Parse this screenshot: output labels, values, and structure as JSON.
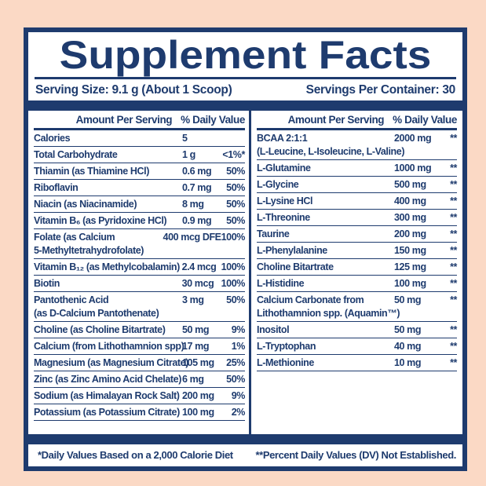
{
  "title": "Supplement Facts",
  "serving": {
    "size_label": "Serving Size: 9.1 g (About 1 Scoop)",
    "per_container_label": "Servings Per Container: 30"
  },
  "table": {
    "header": {
      "amount": "Amount Per Serving",
      "dv": "% Daily Value"
    },
    "left_rows": [
      {
        "name": "Calories",
        "amount": "5",
        "dv": ""
      },
      {
        "name": "Total Carbohydrate",
        "amount": "1 g",
        "dv": "<1%*"
      },
      {
        "name": "Thiamin (as Thiamine HCl)",
        "amount": "0.6 mg",
        "dv": "50%"
      },
      {
        "name": "Riboflavin",
        "amount": "0.7 mg",
        "dv": "50%"
      },
      {
        "name": "Niacin (as Niacinamide)",
        "amount": "8 mg",
        "dv": "50%"
      },
      {
        "name": "Vitamin B₆ (as Pyridoxine HCl)",
        "amount": "0.9 mg",
        "dv": "50%"
      },
      {
        "name": "Folate (as Calcium",
        "name2": "5-Methyltetrahydrofolate)",
        "amount": "400 mcg DFE",
        "dv": "100%"
      },
      {
        "name": "Vitamin B₁₂ (as Methylcobalamin)",
        "amount": "2.4 mcg",
        "dv": "100%"
      },
      {
        "name": "Biotin",
        "amount": "30 mcg",
        "dv": "100%"
      },
      {
        "name": "Pantothenic Acid",
        "name2": "(as D-Calcium Pantothenate)",
        "amount": "3 mg",
        "dv": "50%"
      },
      {
        "name": "Choline (as Choline Bitartrate)",
        "amount": "50 mg",
        "dv": "9%"
      },
      {
        "name": "Calcium (from Lithothamnion spp)",
        "amount": "17 mg",
        "dv": "1%"
      },
      {
        "name": "Magnesium (as Magnesium Citrate)",
        "amount": "105 mg",
        "dv": "25%"
      },
      {
        "name": "Zinc (as Zinc Amino Acid Chelate)",
        "amount": "6 mg",
        "dv": "50%"
      },
      {
        "name": "Sodium (as Himalayan Rock Salt)",
        "amount": "200 mg",
        "dv": "9%"
      },
      {
        "name": "Potassium (as Potassium Citrate)",
        "amount": "100 mg",
        "dv": "2%"
      }
    ],
    "right_rows": [
      {
        "name": "BCAA 2:1:1",
        "name2": "(L-Leucine, L-Isoleucine, L-Valine)",
        "amount": "2000 mg",
        "dv": "**"
      },
      {
        "name": "L-Glutamine",
        "amount": "1000 mg",
        "dv": "**"
      },
      {
        "name": "L-Glycine",
        "amount": "500 mg",
        "dv": "**"
      },
      {
        "name": "L-Lysine HCl",
        "amount": "400 mg",
        "dv": "**"
      },
      {
        "name": "L-Threonine",
        "amount": "300 mg",
        "dv": "**"
      },
      {
        "name": "Taurine",
        "amount": "200 mg",
        "dv": "**"
      },
      {
        "name": "L-Phenylalanine",
        "amount": "150 mg",
        "dv": "**"
      },
      {
        "name": "Choline Bitartrate",
        "amount": "125 mg",
        "dv": "**"
      },
      {
        "name": "L-Histidine",
        "amount": "100 mg",
        "dv": "**"
      },
      {
        "name": "Calcium Carbonate from",
        "name2": "Lithothamnion spp. (Aquamin™)",
        "amount": "50 mg",
        "dv": "**"
      },
      {
        "name": "Inositol",
        "amount": "50 mg",
        "dv": "**"
      },
      {
        "name": "L-Tryptophan",
        "amount": "40 mg",
        "dv": "**"
      },
      {
        "name": "L-Methionine",
        "amount": "10 mg",
        "dv": "**"
      }
    ]
  },
  "footnotes": {
    "left": "*Daily Values Based on a 2,000 Calorie Diet",
    "right": "**Percent Daily Values (DV) Not Established."
  },
  "colors": {
    "navy": "#1e3b6e",
    "peach": "#fbd9c5",
    "white": "#ffffff"
  }
}
